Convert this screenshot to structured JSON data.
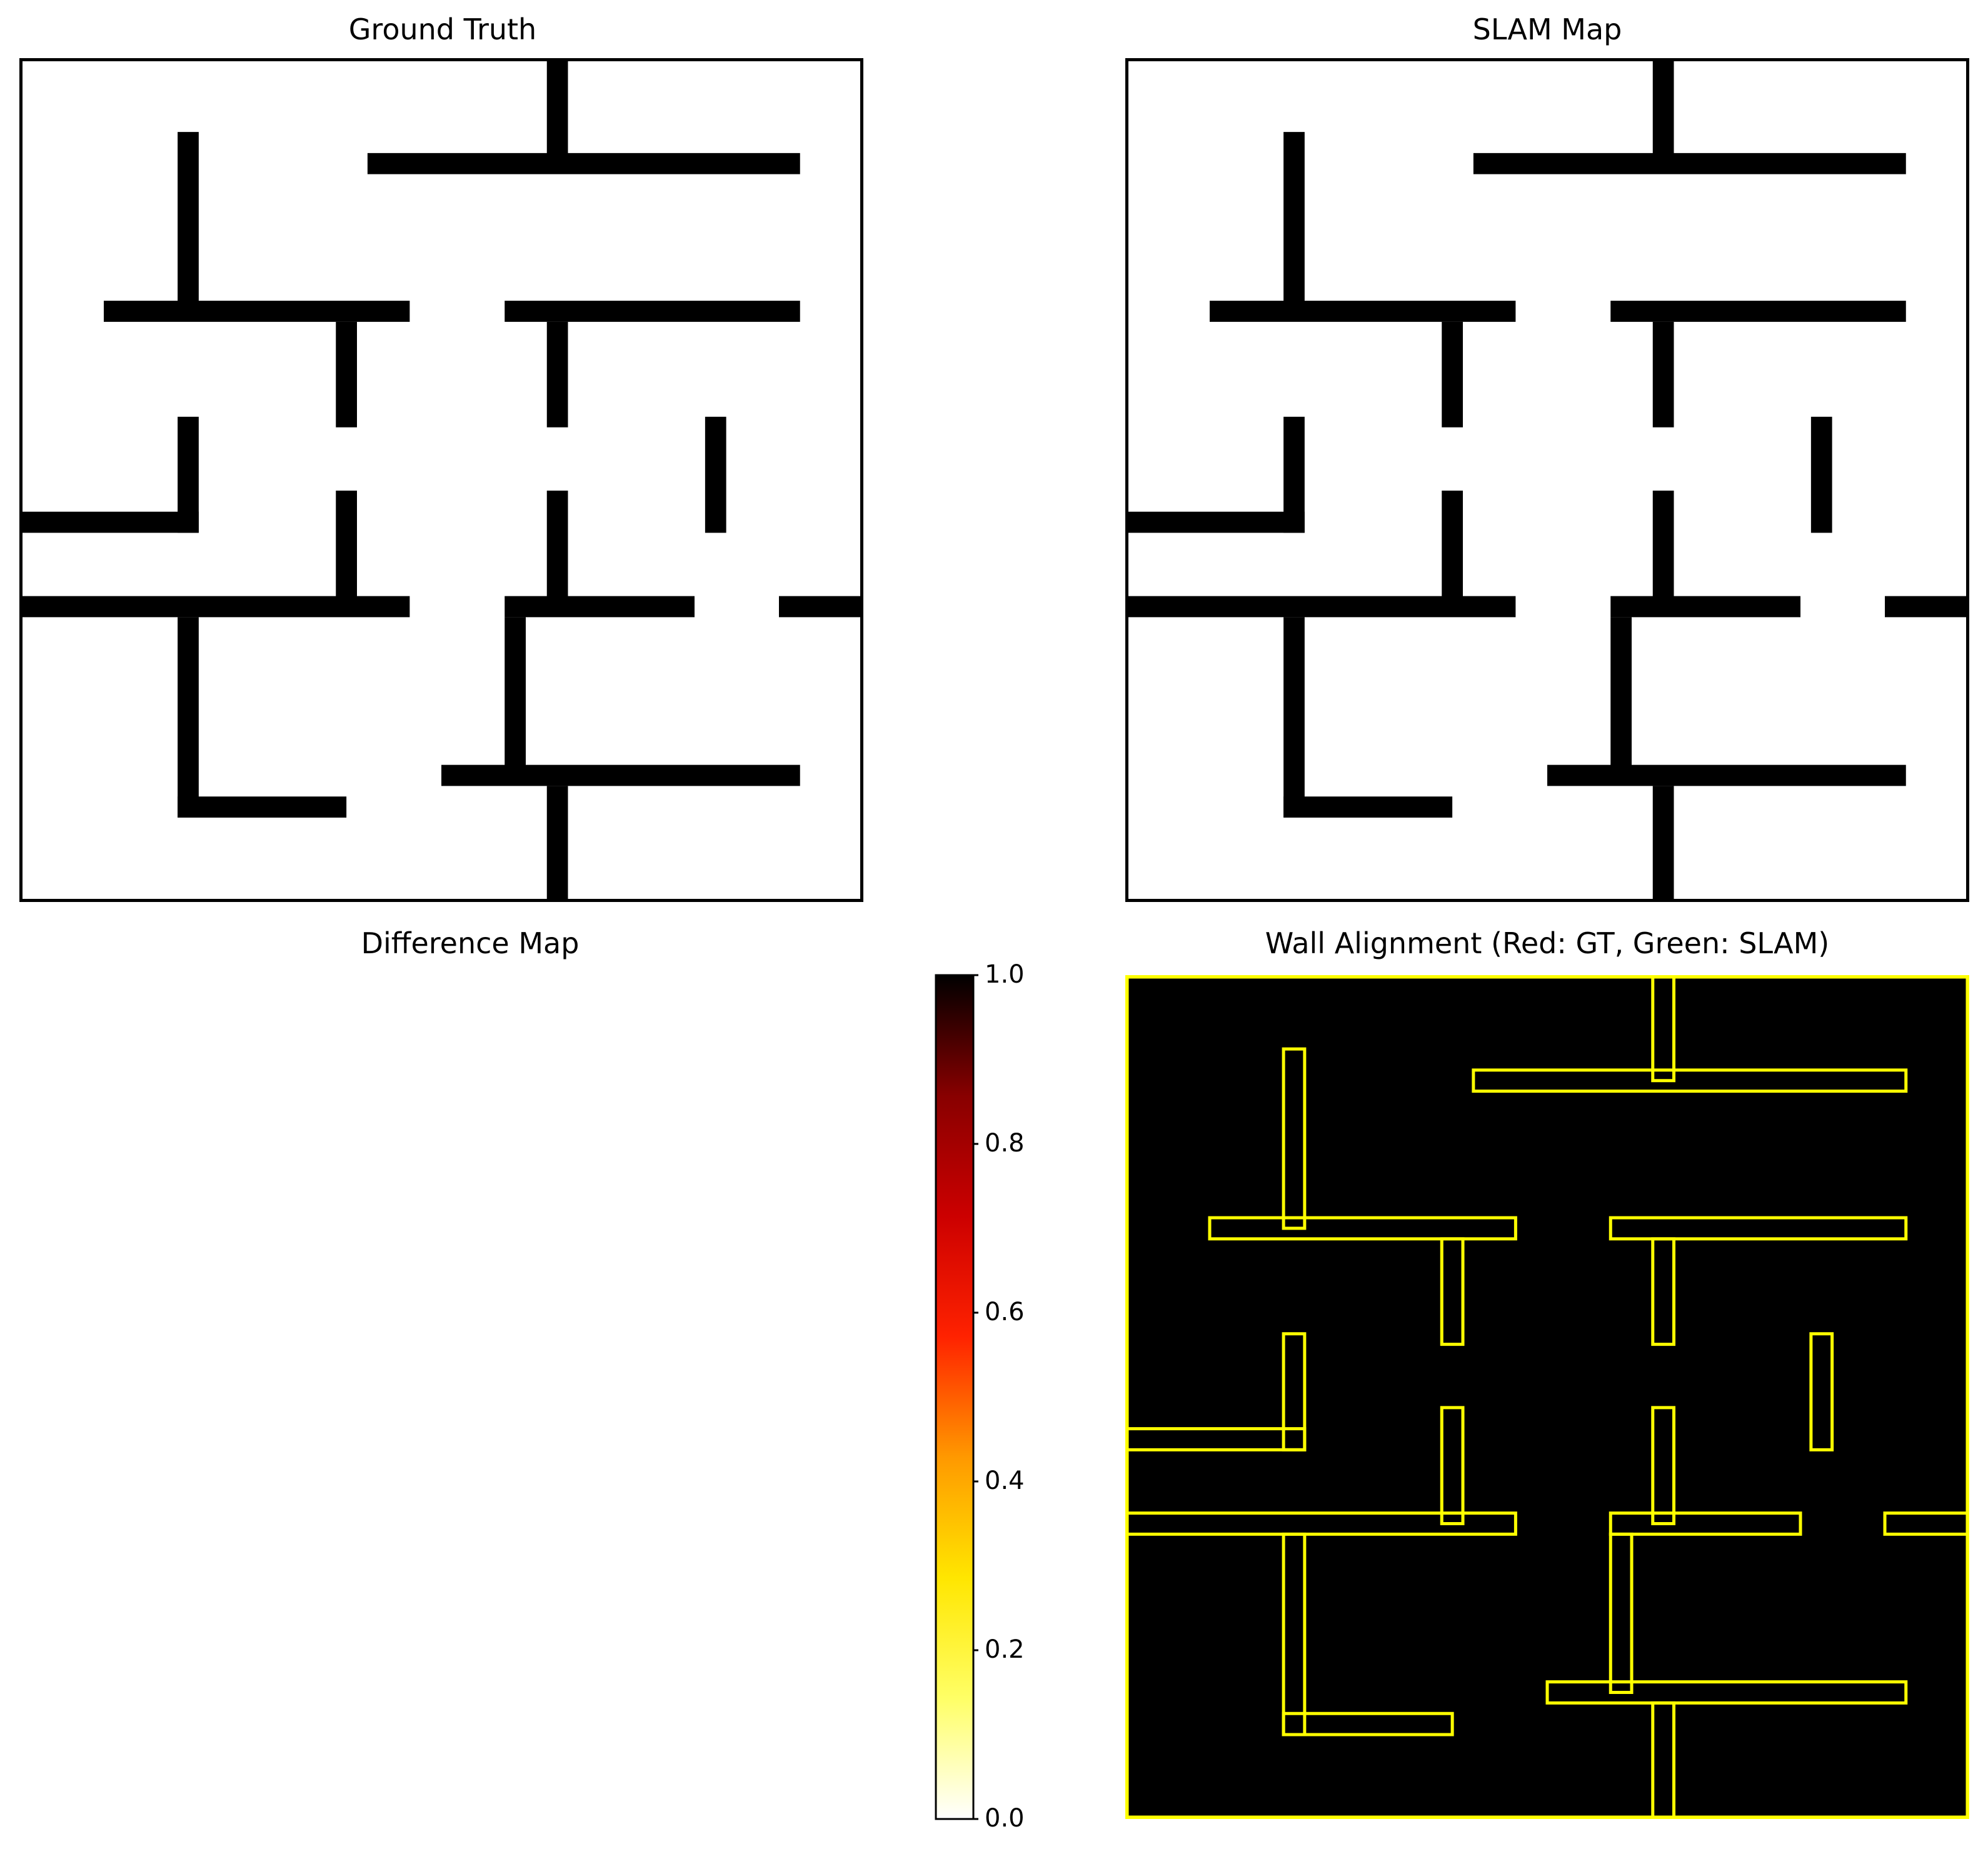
{
  "chart_data": [
    {
      "type": "heatmap",
      "title": "Ground Truth",
      "colormap": "gray",
      "colors": {
        "free": "#ffffff",
        "wall": "#000000"
      },
      "grid_size": [
        80,
        80
      ],
      "walls": [
        [
          50,
          0,
          52,
          10
        ],
        [
          33,
          9,
          74,
          11
        ],
        [
          15,
          7,
          17,
          24
        ],
        [
          8,
          23,
          37,
          25
        ],
        [
          46,
          23,
          74,
          25
        ],
        [
          30,
          25,
          32,
          35
        ],
        [
          50,
          25,
          52,
          35
        ],
        [
          15,
          34,
          17,
          45
        ],
        [
          0,
          43,
          17,
          45
        ],
        [
          65,
          34,
          67,
          45
        ],
        [
          30,
          41,
          32,
          52
        ],
        [
          50,
          41,
          52,
          52
        ],
        [
          0,
          51,
          37,
          53
        ],
        [
          46,
          51,
          64,
          53
        ],
        [
          72,
          51,
          80,
          53
        ],
        [
          15,
          53,
          17,
          72
        ],
        [
          15,
          70,
          31,
          72
        ],
        [
          46,
          53,
          48,
          68
        ],
        [
          40,
          67,
          74,
          69
        ],
        [
          50,
          69,
          52,
          80
        ]
      ]
    },
    {
      "type": "heatmap",
      "title": "SLAM Map",
      "colormap": "gray",
      "colors": {
        "free": "#ffffff",
        "wall": "#000000"
      },
      "grid_size": [
        80,
        80
      ],
      "walls": [
        [
          50,
          0,
          52,
          10
        ],
        [
          33,
          9,
          74,
          11
        ],
        [
          15,
          7,
          17,
          24
        ],
        [
          8,
          23,
          37,
          25
        ],
        [
          46,
          23,
          74,
          25
        ],
        [
          30,
          25,
          32,
          35
        ],
        [
          50,
          25,
          52,
          35
        ],
        [
          15,
          34,
          17,
          45
        ],
        [
          0,
          43,
          17,
          45
        ],
        [
          65,
          34,
          67,
          45
        ],
        [
          30,
          41,
          32,
          52
        ],
        [
          50,
          41,
          52,
          52
        ],
        [
          0,
          51,
          37,
          53
        ],
        [
          46,
          51,
          64,
          53
        ],
        [
          72,
          51,
          80,
          53
        ],
        [
          15,
          53,
          17,
          72
        ],
        [
          15,
          70,
          31,
          72
        ],
        [
          46,
          53,
          48,
          68
        ],
        [
          40,
          67,
          74,
          69
        ],
        [
          50,
          69,
          52,
          80
        ]
      ]
    },
    {
      "type": "heatmap",
      "title": "Difference Map",
      "colormap": "hot_r",
      "values": "all 0",
      "colorbar": {
        "range": [
          0,
          1
        ],
        "ticks": [
          "0.0",
          "0.2",
          "0.4",
          "0.6",
          "0.8",
          "1.0"
        ],
        "stops": [
          "#ffffff",
          "#ffff66",
          "#ffe600",
          "#ff9900",
          "#ff2200",
          "#cc0000",
          "#880000",
          "#000000"
        ]
      }
    },
    {
      "type": "heatmap",
      "title": "Wall Alignment (Red: GT, Green: SLAM)",
      "background": "#000000",
      "outline_color": "#ffff00",
      "note_colors": {
        "gt": "#ff0000",
        "slam": "#00ff00",
        "overlap": "#ffff00"
      }
    }
  ]
}
